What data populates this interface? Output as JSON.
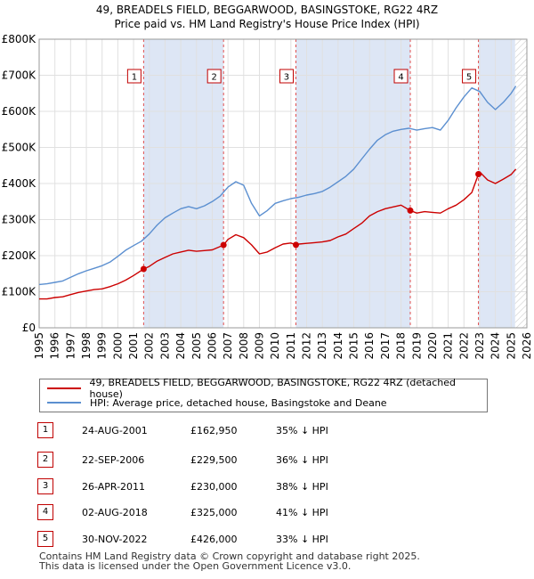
{
  "title_line1": "49, BREADELS FIELD, BEGGARWOOD, BASINGSTOKE, RG22 4RZ",
  "title_line2": "Price paid vs. HM Land Registry's House Price Index (HPI)",
  "legend": {
    "property": "49, BREADELS FIELD, BEGGARWOOD, BASINGSTOKE, RG22 4RZ (detached house)",
    "hpi": "HPI: Average price, detached house, Basingstoke and Deane"
  },
  "sales": [
    {
      "num": "1",
      "date": "24-AUG-2001",
      "price": "£162,950",
      "hpi": "35% ↓ HPI"
    },
    {
      "num": "2",
      "date": "22-SEP-2006",
      "price": "£229,500",
      "hpi": "36% ↓ HPI"
    },
    {
      "num": "3",
      "date": "26-APR-2011",
      "price": "£230,000",
      "hpi": "38% ↓ HPI"
    },
    {
      "num": "4",
      "date": "02-AUG-2018",
      "price": "£325,000",
      "hpi": "41% ↓ HPI"
    },
    {
      "num": "5",
      "date": "30-NOV-2022",
      "price": "£426,000",
      "hpi": "33% ↓ HPI"
    }
  ],
  "footer_line1": "Contains HM Land Registry data © Crown copyright and database right 2025.",
  "footer_line2": "This data is licensed under the Open Government Licence v3.0.",
  "colors": {
    "property": "#cc0000",
    "hpi": "#5b8fd0",
    "band": "#dde6f5",
    "vline": "#e05050",
    "grid": "#e0e0e0"
  },
  "chart_data": {
    "type": "line",
    "xlim": [
      1995,
      2026
    ],
    "ylim": [
      0,
      800000
    ],
    "yticks": [
      0,
      100000,
      200000,
      300000,
      400000,
      500000,
      600000,
      700000,
      800000
    ],
    "ytick_labels": [
      "£0",
      "£100K",
      "£200K",
      "£300K",
      "£400K",
      "£500K",
      "£600K",
      "£700K",
      "£800K"
    ],
    "xticks": [
      1995,
      1996,
      1997,
      1998,
      1999,
      2000,
      2001,
      2002,
      2003,
      2004,
      2005,
      2006,
      2007,
      2008,
      2009,
      2010,
      2011,
      2012,
      2013,
      2014,
      2015,
      2016,
      2017,
      2018,
      2019,
      2020,
      2021,
      2022,
      2023,
      2024,
      2025,
      2026
    ],
    "future_from": 2025.25,
    "sale_markers": [
      {
        "label": "1",
        "x": 2001.64,
        "y": 162950
      },
      {
        "label": "2",
        "x": 2006.72,
        "y": 229500
      },
      {
        "label": "3",
        "x": 2011.32,
        "y": 230000
      },
      {
        "label": "4",
        "x": 2018.59,
        "y": 325000
      },
      {
        "label": "5",
        "x": 2022.92,
        "y": 426000
      }
    ],
    "shaded_periods": [
      [
        2001.64,
        2006.72
      ],
      [
        2011.32,
        2018.59
      ],
      [
        2022.92,
        2025.25
      ]
    ],
    "series": [
      {
        "name": "49, BREADELS FIELD, BEGGARWOOD, BASINGSTOKE, RG22 4RZ (detached house)",
        "x": [
          1995.0,
          1995.5,
          1996.0,
          1996.5,
          1997.0,
          1997.5,
          1998.0,
          1998.5,
          1999.0,
          1999.5,
          2000.0,
          2000.5,
          2001.0,
          2001.64,
          2002.0,
          2002.5,
          2003.0,
          2003.5,
          2004.0,
          2004.5,
          2005.0,
          2005.5,
          2006.0,
          2006.72,
          2007.0,
          2007.5,
          2008.0,
          2008.5,
          2009.0,
          2009.5,
          2010.0,
          2010.5,
          2011.0,
          2011.32,
          2011.5,
          2012.0,
          2012.5,
          2013.0,
          2013.5,
          2014.0,
          2014.5,
          2015.0,
          2015.5,
          2016.0,
          2016.5,
          2017.0,
          2017.5,
          2018.0,
          2018.59,
          2019.0,
          2019.5,
          2020.0,
          2020.5,
          2021.0,
          2021.5,
          2022.0,
          2022.5,
          2022.92,
          2023.0,
          2023.5,
          2024.0,
          2024.5,
          2025.0,
          2025.3
        ],
        "values": [
          80000,
          80000,
          84000,
          86000,
          92000,
          98000,
          102000,
          106000,
          108000,
          114000,
          122000,
          132000,
          145000,
          162950,
          170000,
          185000,
          195000,
          205000,
          210000,
          215000,
          212000,
          214000,
          216000,
          229500,
          245000,
          258000,
          250000,
          230000,
          205000,
          210000,
          222000,
          232000,
          235000,
          230000,
          232000,
          234000,
          236000,
          238000,
          242000,
          252000,
          260000,
          275000,
          290000,
          310000,
          322000,
          330000,
          335000,
          340000,
          325000,
          318000,
          322000,
          320000,
          318000,
          330000,
          340000,
          355000,
          375000,
          426000,
          432000,
          410000,
          400000,
          412000,
          425000,
          440000
        ]
      },
      {
        "name": "HPI: Average price, detached house, Basingstoke and Deane",
        "x": [
          1995.0,
          1995.5,
          1996.0,
          1996.5,
          1997.0,
          1997.5,
          1998.0,
          1998.5,
          1999.0,
          1999.5,
          2000.0,
          2000.5,
          2001.0,
          2001.5,
          2002.0,
          2002.5,
          2003.0,
          2003.5,
          2004.0,
          2004.5,
          2005.0,
          2005.5,
          2006.0,
          2006.5,
          2007.0,
          2007.5,
          2008.0,
          2008.5,
          2009.0,
          2009.5,
          2010.0,
          2010.5,
          2011.0,
          2011.5,
          2012.0,
          2012.5,
          2013.0,
          2013.5,
          2014.0,
          2014.5,
          2015.0,
          2015.5,
          2016.0,
          2016.5,
          2017.0,
          2017.5,
          2018.0,
          2018.5,
          2019.0,
          2019.5,
          2020.0,
          2020.5,
          2021.0,
          2021.5,
          2022.0,
          2022.5,
          2023.0,
          2023.5,
          2024.0,
          2024.5,
          2025.0,
          2025.3
        ],
        "values": [
          120000,
          122000,
          126000,
          130000,
          140000,
          150000,
          158000,
          165000,
          172000,
          182000,
          198000,
          215000,
          228000,
          240000,
          260000,
          285000,
          305000,
          318000,
          330000,
          336000,
          330000,
          338000,
          350000,
          365000,
          390000,
          405000,
          395000,
          345000,
          310000,
          325000,
          345000,
          352000,
          358000,
          362000,
          368000,
          372000,
          378000,
          390000,
          405000,
          420000,
          440000,
          468000,
          495000,
          520000,
          535000,
          545000,
          550000,
          553000,
          548000,
          552000,
          555000,
          548000,
          575000,
          610000,
          640000,
          665000,
          655000,
          625000,
          605000,
          625000,
          650000,
          670000
        ]
      }
    ]
  }
}
